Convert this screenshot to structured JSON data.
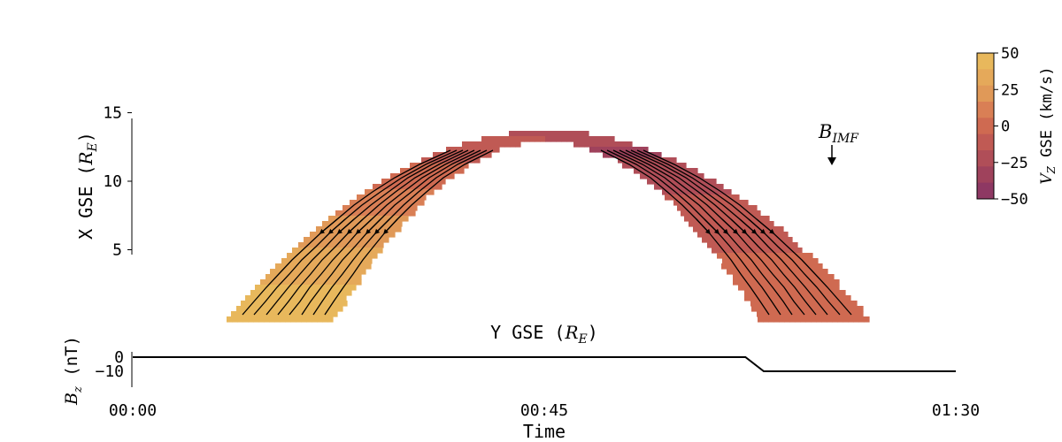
{
  "chart_data": [
    {
      "type": "heatmap",
      "subtype": "magnetosheath flow map with streamlines",
      "xlabel_text": "Y GSE (",
      "xlabel_sym": "R",
      "xlabel_sub": "E",
      "xlabel_end": ")",
      "ylabel_text": "X GSE (",
      "ylabel_sym": "R",
      "ylabel_sub": "E",
      "ylabel_end": ")",
      "y_ticks": [
        "5",
        "10",
        "15"
      ],
      "ylim": [
        0,
        17
      ],
      "x_ticks_shown": false,
      "annotation": {
        "sym": "B",
        "sub": "IMF",
        "direction": "down"
      },
      "colorbar": {
        "label_sym": "V",
        "label_sub": "Z",
        "label_text": " GSE (km/s)",
        "range": [
          -50,
          50
        ],
        "ticks": [
          "50",
          "25",
          "0",
          "−25",
          "−50"
        ],
        "tick_values": [
          50,
          25,
          0,
          -25,
          -50
        ],
        "colors": [
          "#e8b85c",
          "#e5a95a",
          "#e09958",
          "#d97f55",
          "#cf6a51",
          "#c05a54",
          "#b04e58",
          "#9f425c",
          "#8e3863"
        ]
      },
      "flow_pattern": "Vz positive (~+45 km/s) on left flank, decreasing to about -30 km/s near the nose, then about +5 km/s on right flank"
    },
    {
      "type": "line",
      "ylabel_sym": "B",
      "ylabel_sub": "z",
      "ylabel_end": " (nT)",
      "xlabel": "Time",
      "x_ticks": [
        "00:00",
        "00:45",
        "01:30"
      ],
      "y_ticks": [
        "0",
        "−10"
      ],
      "ylim": [
        -10,
        0
      ],
      "series": [
        {
          "x": [
            "00:00",
            "01:07",
            "01:09",
            "01:30"
          ],
          "y": [
            0,
            0,
            -10,
            -10
          ]
        }
      ]
    }
  ]
}
